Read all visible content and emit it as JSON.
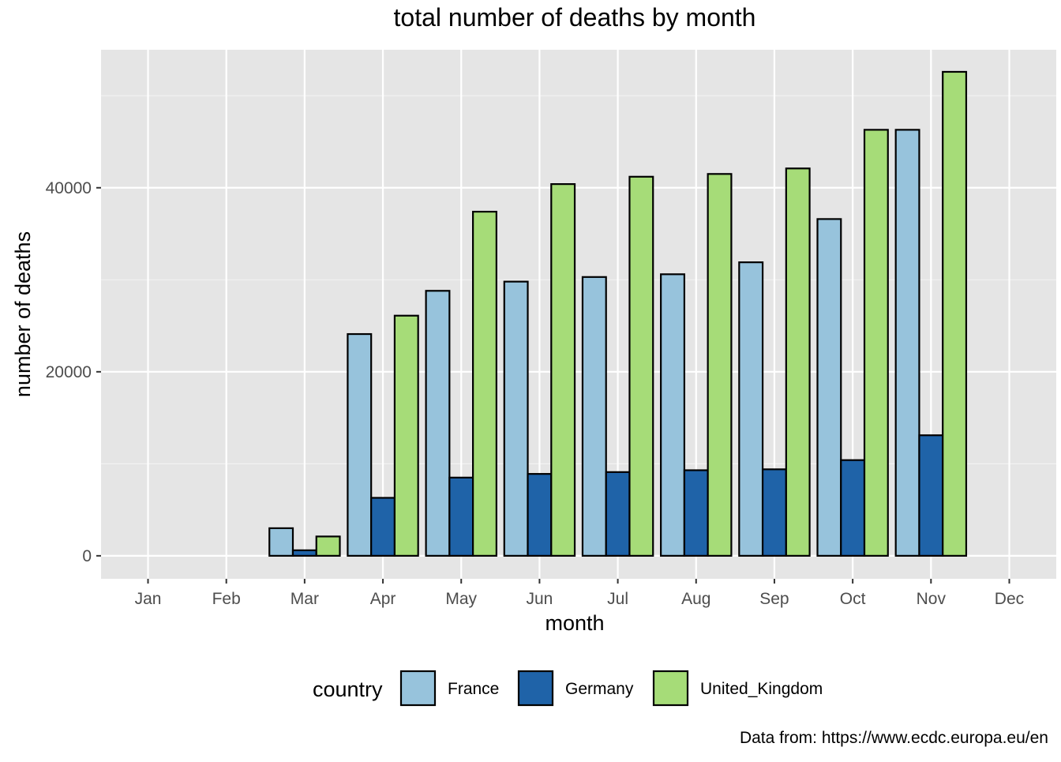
{
  "chart_data": {
    "type": "bar",
    "title": "total number of deaths by month",
    "xlabel": "month",
    "ylabel": "number of deaths",
    "caption": "Data from: https://www.ecdc.europa.eu/en",
    "categories": [
      "Jan",
      "Feb",
      "Mar",
      "Apr",
      "May",
      "Jun",
      "Jul",
      "Aug",
      "Sep",
      "Oct",
      "Nov",
      "Dec"
    ],
    "yticks": [
      0,
      20000,
      40000
    ],
    "ylim": [
      -2500,
      55000
    ],
    "grid": true,
    "legend": {
      "title": "country",
      "position": "bottom"
    },
    "series": [
      {
        "name": "France",
        "color": "#97c3dc",
        "values": [
          0,
          0,
          3000,
          24100,
          28800,
          29800,
          30300,
          30600,
          31900,
          36600,
          46300,
          0
        ]
      },
      {
        "name": "Germany",
        "color": "#1f63a8",
        "values": [
          0,
          0,
          600,
          6300,
          8500,
          8900,
          9100,
          9300,
          9400,
          10400,
          13100,
          0
        ]
      },
      {
        "name": "United_Kingdom",
        "color": "#a6dc78",
        "values": [
          0,
          0,
          2100,
          26100,
          37400,
          40400,
          41200,
          41500,
          42100,
          46300,
          52600,
          0
        ]
      }
    ]
  }
}
